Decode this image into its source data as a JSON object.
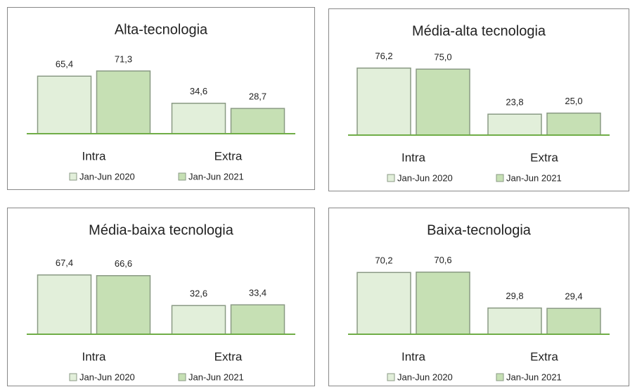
{
  "chart_data": [
    {
      "type": "bar",
      "title": "Alta-tecnologia",
      "categories": [
        "Intra",
        "Extra"
      ],
      "series": [
        {
          "name": "Jan-Jun 2020",
          "color": "#e2efda",
          "values": [
            65.4,
            34.6
          ],
          "value_labels": [
            "65,4",
            "34,6"
          ]
        },
        {
          "name": "Jan-Jun 2021",
          "color": "#c6e0b4",
          "values": [
            71.3,
            28.7
          ],
          "value_labels": [
            "71,3",
            "28,7"
          ]
        }
      ]
    },
    {
      "type": "bar",
      "title": "Média-alta tecnologia",
      "categories": [
        "Intra",
        "Extra"
      ],
      "series": [
        {
          "name": "Jan-Jun 2020",
          "color": "#e2efda",
          "values": [
            76.2,
            23.8
          ],
          "value_labels": [
            "76,2",
            "23,8"
          ]
        },
        {
          "name": "Jan-Jun 2021",
          "color": "#c6e0b4",
          "values": [
            75.0,
            25.0
          ],
          "value_labels": [
            "75,0",
            "25,0"
          ]
        }
      ]
    },
    {
      "type": "bar",
      "title": "Média-baixa tecnologia",
      "categories": [
        "Intra",
        "Extra"
      ],
      "series": [
        {
          "name": "Jan-Jun 2020",
          "color": "#e2efda",
          "values": [
            67.4,
            32.6
          ],
          "value_labels": [
            "67,4",
            "32,6"
          ]
        },
        {
          "name": "Jan-Jun 2021",
          "color": "#c6e0b4",
          "values": [
            66.6,
            33.4
          ],
          "value_labels": [
            "66,6",
            "33,4"
          ]
        }
      ]
    },
    {
      "type": "bar",
      "title": "Baixa-tecnologia",
      "categories": [
        "Intra",
        "Extra"
      ],
      "series": [
        {
          "name": "Jan-Jun 2020",
          "color": "#e2efda",
          "values": [
            70.2,
            29.8
          ],
          "value_labels": [
            "70,2",
            "29,8"
          ]
        },
        {
          "name": "Jan-Jun 2021",
          "color": "#c6e0b4",
          "values": [
            70.6,
            29.4
          ],
          "value_labels": [
            "70,6",
            "29,4"
          ]
        }
      ]
    }
  ]
}
